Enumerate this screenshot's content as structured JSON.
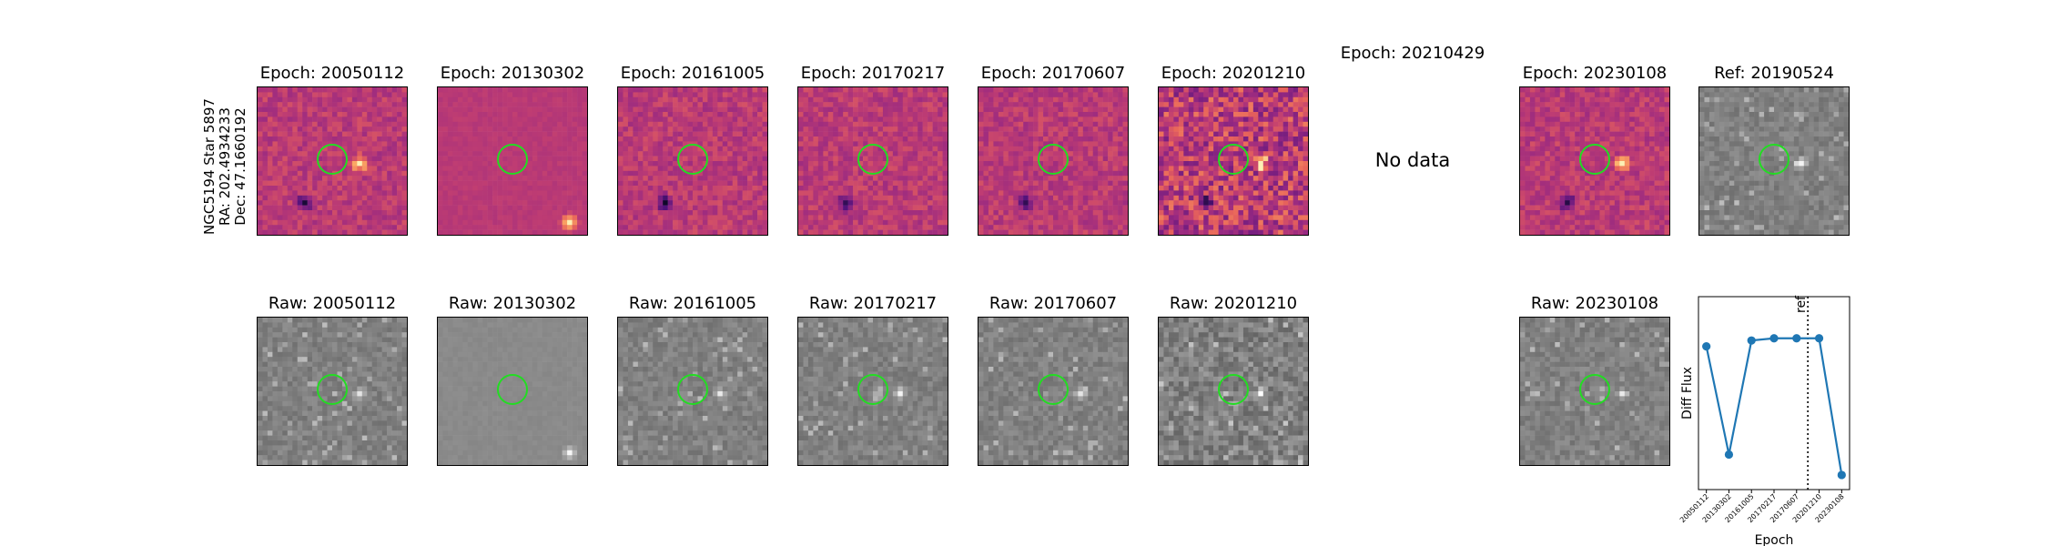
{
  "row_label": {
    "star": "NGC5194 Star 5897",
    "ra": "RA: 202.4934233",
    "dec": "Dec: 47.1660192"
  },
  "epochs": [
    {
      "title": "Epoch: 20050112",
      "raw_title": "Raw: 20050112",
      "has_data": true
    },
    {
      "title": "Epoch: 20130302",
      "raw_title": "Raw: 20130302",
      "has_data": true
    },
    {
      "title": "Epoch: 20161005",
      "raw_title": "Raw: 20161005",
      "has_data": true
    },
    {
      "title": "Epoch: 20170217",
      "raw_title": "Raw: 20170217",
      "has_data": true
    },
    {
      "title": "Epoch: 20170607",
      "raw_title": "Raw: 20170607",
      "has_data": true
    },
    {
      "title": "Epoch: 20201210",
      "raw_title": "Raw: 20201210",
      "has_data": true
    },
    {
      "title": "Epoch: 20210429",
      "raw_title": "",
      "has_data": false,
      "no_data_text": "No data"
    },
    {
      "title": "Epoch: 20230108",
      "raw_title": "Raw: 20230108",
      "has_data": true
    }
  ],
  "reference": {
    "title": "Ref: 20190524"
  },
  "colors": {
    "marker_ring": "#22dd22",
    "series": "#1f77b4"
  },
  "chart_data": {
    "type": "line",
    "title": "",
    "xlabel": "Epoch",
    "ylabel": "Diff Flux",
    "categories": [
      "20050112",
      "20130302",
      "20161005",
      "20170217",
      "20170607",
      "20201210",
      "20230108"
    ],
    "series": [
      {
        "values": [
          0.86,
          0.12,
          0.9,
          0.915,
          0.915,
          0.915,
          -0.02
        ]
      }
    ],
    "ylim": [
      -0.12,
      1.2
    ],
    "reference_line": {
      "position": 4.5,
      "label": "ref",
      "style": "dotted"
    },
    "grid": false,
    "legend": "none"
  }
}
